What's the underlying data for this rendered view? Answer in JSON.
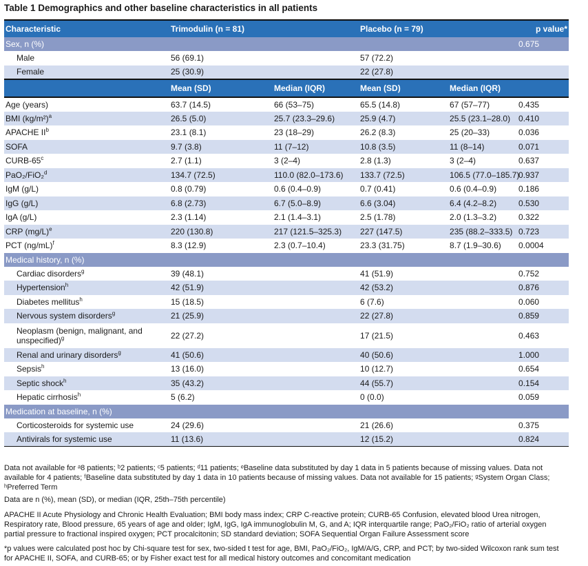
{
  "title": "Table 1  Demographics and other baseline characteristics in all patients",
  "header": {
    "characteristic": "Characteristic",
    "trimodulin": "Trimodulin (n = 81)",
    "placebo": "Placebo (n = 79)",
    "pvalue": "p value*"
  },
  "sex": {
    "label": "Sex, n (%)",
    "p": "0.675",
    "rows": [
      {
        "label": "Male",
        "t": "56 (69.1)",
        "pl": "57 (72.2)"
      },
      {
        "label": "Female",
        "t": "25 (30.9)",
        "pl": "22 (27.8)"
      }
    ]
  },
  "subheader": {
    "mean": "Mean (SD)",
    "median": "Median (IQR)"
  },
  "continuous": [
    {
      "label": "Age (years)",
      "sup": "",
      "tm": "63.7 (14.5)",
      "tmed": "66 (53–75)",
      "pm": "65.5 (14.8)",
      "pmed": "67 (57–77)",
      "p": "0.435"
    },
    {
      "label": "BMI (kg/m²)",
      "sup": "a",
      "tm": "26.5 (5.0)",
      "tmed": "25.7 (23.3–29.6)",
      "pm": "25.9 (4.7)",
      "pmed": "25.5 (23.1–28.0)",
      "p": "0.410"
    },
    {
      "label": "APACHE II",
      "sup": "b",
      "tm": "23.1 (8.1)",
      "tmed": "23 (18–29)",
      "pm": "26.2 (8.3)",
      "pmed": "25 (20–33)",
      "p": "0.036"
    },
    {
      "label": "SOFA",
      "sup": "",
      "tm": "9.7 (3.8)",
      "tmed": "11 (7–12)",
      "pm": "10.8 (3.5)",
      "pmed": "11 (8–14)",
      "p": "0.071"
    },
    {
      "label": "CURB-65",
      "sup": "c",
      "tm": "2.7 (1.1)",
      "tmed": "3 (2–4)",
      "pm": "2.8 (1.3)",
      "pmed": "3 (2–4)",
      "p": "0.637"
    },
    {
      "label": "PaO₂/FiO₂",
      "sup": "d",
      "tm": "134.7 (72.5)",
      "tmed": "110.0 (82.0–173.6)",
      "pm": "133.7 (72.5)",
      "pmed": "106.5 (77.0–185.7)",
      "p": "0.937"
    },
    {
      "label": "IgM (g/L)",
      "sup": "",
      "tm": "0.8 (0.79)",
      "tmed": "0.6 (0.4–0.9)",
      "pm": "0.7 (0.41)",
      "pmed": "0.6 (0.4–0.9)",
      "p": "0.186"
    },
    {
      "label": "IgG (g/L)",
      "sup": "",
      "tm": "6.8 (2.73)",
      "tmed": "6.7 (5.0–8.9)",
      "pm": "6.6 (3.04)",
      "pmed": "6.4 (4.2–8.2)",
      "p": "0.530"
    },
    {
      "label": "IgA (g/L)",
      "sup": "",
      "tm": "2.3 (1.14)",
      "tmed": "2.1 (1.4–3.1)",
      "pm": "2.5 (1.78)",
      "pmed": "2.0 (1.3–3.2)",
      "p": "0.322"
    },
    {
      "label": "CRP (mg/L)",
      "sup": "e",
      "tm": "220 (130.8)",
      "tmed": "217 (121.5–325.3)",
      "pm": "227 (147.5)",
      "pmed": "235 (88.2–333.5)",
      "p": "0.723"
    },
    {
      "label": "PCT (ng/mL)",
      "sup": "f",
      "tm": "8.3 (12.9)",
      "tmed": "2.3 (0.7–10.4)",
      "pm": "23.3 (31.75)",
      "pmed": "8.7 (1.9–30.6)",
      "p": "0.0004"
    }
  ],
  "history": {
    "label": "Medical history, n (%)",
    "rows": [
      {
        "label": "Cardiac disorders",
        "sup": "g",
        "t": "39 (48.1)",
        "pl": "41 (51.9)",
        "p": "0.752"
      },
      {
        "label": "Hypertension",
        "sup": "h",
        "t": "42 (51.9)",
        "pl": "42 (53.2)",
        "p": "0.876"
      },
      {
        "label": "Diabetes mellitus",
        "sup": "h",
        "t": "15 (18.5)",
        "pl": "6 (7.6)",
        "p": "0.060"
      },
      {
        "label": "Nervous system disorders",
        "sup": "g",
        "t": "21 (25.9)",
        "pl": "22 (27.8)",
        "p": "0.859"
      },
      {
        "label": "Neoplasm (benign, malignant, and unspecified)",
        "sup": "g",
        "t": "22 (27.2)",
        "pl": "17 (21.5)",
        "p": "0.463"
      },
      {
        "label": "Renal and urinary disorders",
        "sup": "g",
        "t": "41 (50.6)",
        "pl": "40 (50.6)",
        "p": "1.000"
      },
      {
        "label": "Sepsis",
        "sup": "h",
        "t": "13 (16.0)",
        "pl": "10 (12.7)",
        "p": "0.654"
      },
      {
        "label": "Septic shock",
        "sup": "h",
        "t": "35 (43.2)",
        "pl": "44 (55.7)",
        "p": "0.154"
      },
      {
        "label": "Hepatic cirrhosis",
        "sup": "h",
        "t": "5 (6.2)",
        "pl": "0 (0.0)",
        "p": "0.059"
      }
    ]
  },
  "medication": {
    "label": "Medication at baseline, n (%)",
    "rows": [
      {
        "label": "Corticosteroids for systemic use",
        "t": "24 (29.6)",
        "pl": "21 (26.6)",
        "p": "0.375"
      },
      {
        "label": "Antivirals for systemic use",
        "t": "11 (13.6)",
        "pl": "12 (15.2)",
        "p": "0.824"
      }
    ]
  },
  "footnotes": {
    "data_not_available": "Data not available for ᵃ8 patients; ᵇ2 patients; ᶜ5 patients; ᵈ11 patients; ᵉBaseline data substituted by day 1 data in 5 patients because of missing values. Data not available for 4 patients; ᶠBaseline data substituted by day 1 data in 10 patients because of missing values. Data not available for 15 patients; ᵍSystem Organ Class; ʰPreferred Term",
    "data_are": "Data are n (%), mean (SD), or median (IQR, 25th–75th percentile)",
    "abbreviations": "APACHE II Acute Physiology and Chronic Health Evaluation; BMI body mass index; CRP C-reactive protein; CURB-65 Confusion, elevated blood Urea nitrogen, Respiratory rate, Blood pressure, 65 years of age and older; IgM, IgG, IgA immunoglobulin M, G, and A; IQR interquartile range; PaO₂/FiO₂ ratio of arterial oxygen partial pressure to fractional inspired oxygen; PCT procalcitonin; SD standard deviation; SOFA Sequential Organ Failure Assessment score",
    "pvalues": "*p values were calculated post hoc by Chi-square test for sex, two-sided t test for age, BMI, PaO₂/FiO₂, IgM/A/G, CRP, and PCT; by two-sided Wilcoxon rank sum test for APACHE II, SOFA, and CURB-65; or by Fisher exact test for all medical history outcomes and concomitant medication"
  }
}
